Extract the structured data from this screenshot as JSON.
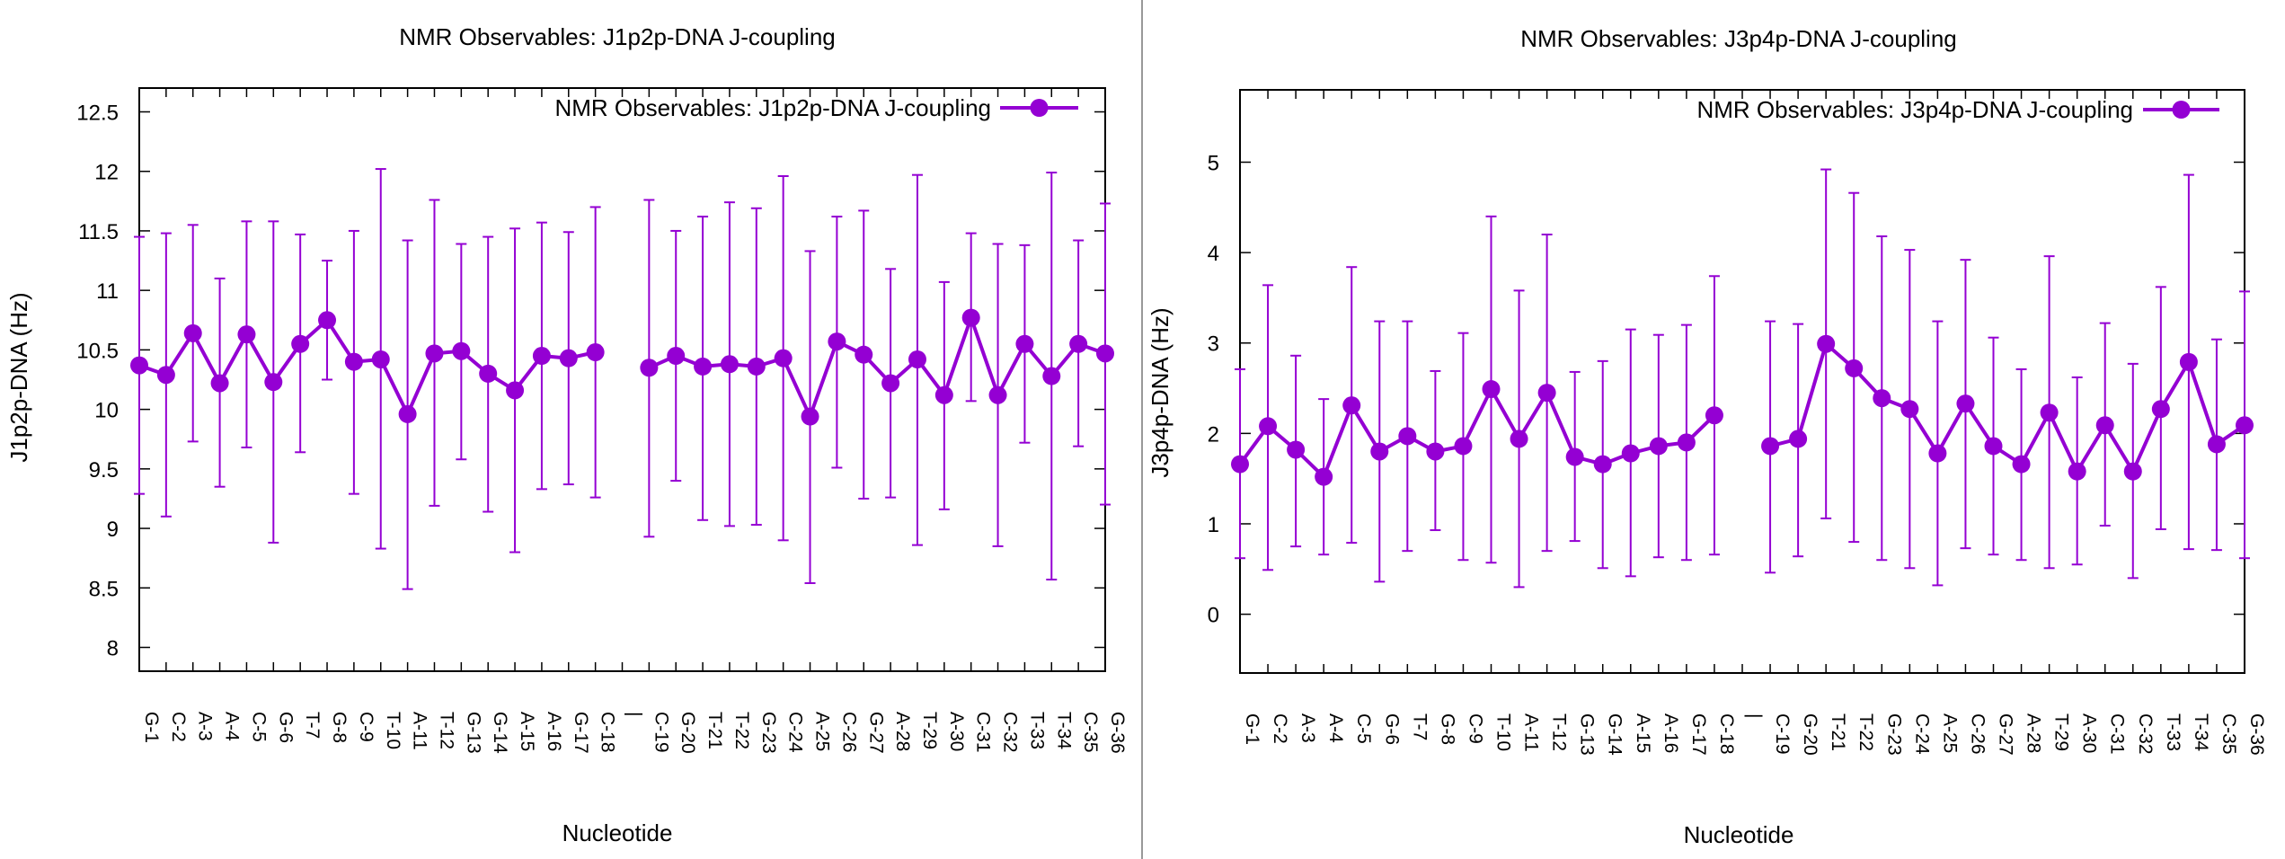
{
  "series_color": "#9400d3",
  "chart_data": [
    {
      "type": "line",
      "title": "NMR Observables: J1p2p-DNA J-coupling",
      "xlabel": "Nucleotide",
      "ylabel": "J1p2p-DNA (Hz)",
      "legend": "NMR Observables: J1p2p-DNA J-coupling",
      "legend_position": "top-right",
      "ylim": [
        7.8,
        12.7
      ],
      "yticks": [
        8,
        8.5,
        9,
        9.5,
        10,
        10.5,
        11,
        11.5,
        12,
        12.5
      ],
      "grid": false,
      "categories": [
        "G-1",
        "C-2",
        "A-3",
        "A-4",
        "C-5",
        "G-6",
        "T-7",
        "G-8",
        "C-9",
        "T-10",
        "A-11",
        "T-12",
        "G-13",
        "G-14",
        "A-15",
        "A-16",
        "G-17",
        "C-18",
        "|",
        "C-19",
        "G-20",
        "T-21",
        "T-22",
        "G-23",
        "C-24",
        "A-25",
        "C-26",
        "G-27",
        "A-28",
        "T-29",
        "A-30",
        "C-31",
        "C-32",
        "T-33",
        "T-34",
        "C-35",
        "G-36"
      ],
      "values": [
        10.37,
        10.29,
        10.64,
        10.22,
        10.63,
        10.23,
        10.55,
        10.75,
        10.4,
        10.42,
        9.96,
        10.47,
        10.49,
        10.3,
        10.16,
        10.45,
        10.43,
        10.48,
        null,
        10.35,
        10.45,
        10.36,
        10.38,
        10.36,
        10.43,
        9.94,
        10.57,
        10.46,
        10.22,
        10.42,
        10.12,
        10.77,
        10.12,
        10.55,
        10.28,
        10.55,
        10.47
      ],
      "error_low": [
        9.29,
        9.1,
        9.73,
        9.35,
        9.68,
        8.88,
        9.64,
        10.25,
        9.29,
        8.83,
        8.49,
        9.19,
        9.58,
        9.14,
        8.8,
        9.33,
        9.37,
        9.26,
        null,
        8.93,
        9.4,
        9.07,
        9.02,
        9.03,
        8.9,
        8.54,
        9.51,
        9.25,
        9.26,
        8.86,
        9.16,
        10.07,
        8.85,
        9.72,
        8.57,
        9.69,
        9.2
      ],
      "error_high": [
        11.45,
        11.48,
        11.55,
        11.1,
        11.58,
        11.58,
        11.47,
        11.25,
        11.5,
        12.02,
        11.42,
        11.76,
        11.39,
        11.45,
        11.52,
        11.57,
        11.49,
        11.7,
        null,
        11.76,
        11.5,
        11.62,
        11.74,
        11.69,
        11.96,
        11.33,
        11.62,
        11.67,
        11.18,
        11.97,
        11.07,
        11.48,
        11.39,
        11.38,
        11.99,
        11.42,
        11.73
      ]
    },
    {
      "type": "line",
      "title": "NMR Observables: J3p4p-DNA J-coupling",
      "xlabel": "Nucleotide",
      "ylabel": "J3p4p-DNA (Hz)",
      "legend": "NMR Observables: J3p4p-DNA J-coupling",
      "legend_position": "top-right",
      "ylim": [
        -0.65,
        5.8
      ],
      "yticks": [
        0,
        1,
        2,
        3,
        4,
        5
      ],
      "grid": false,
      "categories": [
        "G-1",
        "C-2",
        "A-3",
        "A-4",
        "C-5",
        "G-6",
        "T-7",
        "G-8",
        "C-9",
        "T-10",
        "A-11",
        "T-12",
        "G-13",
        "G-14",
        "A-15",
        "A-16",
        "G-17",
        "C-18",
        "|",
        "C-19",
        "G-20",
        "T-21",
        "T-22",
        "G-23",
        "C-24",
        "A-25",
        "C-26",
        "G-27",
        "A-28",
        "T-29",
        "A-30",
        "C-31",
        "C-32",
        "T-33",
        "T-34",
        "C-35",
        "G-36"
      ],
      "values": [
        1.66,
        2.08,
        1.82,
        1.52,
        2.31,
        1.8,
        1.97,
        1.8,
        1.86,
        2.49,
        1.94,
        2.45,
        1.74,
        1.66,
        1.78,
        1.86,
        1.9,
        2.2,
        null,
        1.86,
        1.94,
        2.99,
        2.72,
        2.39,
        2.27,
        1.78,
        2.33,
        1.86,
        1.66,
        2.23,
        1.58,
        2.09,
        1.58,
        2.27,
        2.79,
        1.88,
        2.09
      ],
      "error_low": [
        0.62,
        0.49,
        0.75,
        0.66,
        0.79,
        0.36,
        0.7,
        0.93,
        0.6,
        0.57,
        0.3,
        0.7,
        0.81,
        0.51,
        0.42,
        0.63,
        0.6,
        0.66,
        null,
        0.46,
        0.64,
        1.06,
        0.8,
        0.6,
        0.51,
        0.32,
        0.73,
        0.66,
        0.6,
        0.51,
        0.55,
        0.98,
        0.4,
        0.94,
        0.72,
        0.71,
        0.62
      ],
      "error_high": [
        2.71,
        3.64,
        2.86,
        2.38,
        3.84,
        3.24,
        3.24,
        2.69,
        3.11,
        4.4,
        3.58,
        4.2,
        2.68,
        2.8,
        3.15,
        3.09,
        3.2,
        3.74,
        null,
        3.24,
        3.21,
        4.92,
        4.66,
        4.18,
        4.03,
        3.24,
        3.92,
        3.06,
        2.71,
        3.96,
        2.62,
        3.22,
        2.77,
        3.62,
        4.86,
        3.04,
        3.57
      ]
    }
  ]
}
